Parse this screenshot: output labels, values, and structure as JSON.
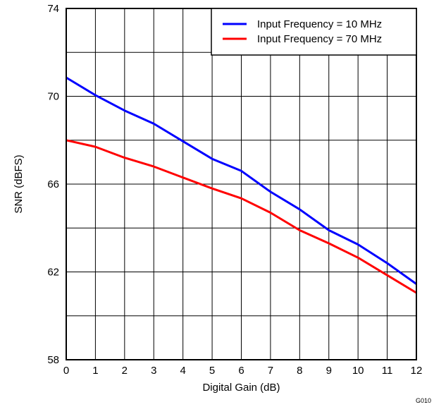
{
  "chart_data": {
    "type": "line",
    "title": "",
    "xlabel": "Digital Gain (dB)",
    "ylabel": "SNR (dBFS)",
    "xlim": [
      0,
      12
    ],
    "ylim": [
      58,
      74
    ],
    "x_ticks": [
      0,
      1,
      2,
      3,
      4,
      5,
      6,
      7,
      8,
      9,
      10,
      11,
      12
    ],
    "y_ticks": [
      58,
      62,
      66,
      70,
      74
    ],
    "y_minor_gridlines": [
      60,
      64,
      68,
      72
    ],
    "grid": true,
    "legend_position": "top-right",
    "x": [
      0,
      1,
      2,
      3,
      4,
      5,
      6,
      7,
      8,
      9,
      10,
      11,
      12
    ],
    "series": [
      {
        "name": "Input Frequency = 10 MHz",
        "color": "#0000ff",
        "values": [
          70.85,
          70.05,
          69.35,
          68.75,
          67.95,
          67.15,
          66.6,
          65.65,
          64.85,
          63.9,
          63.25,
          62.4,
          61.45
        ]
      },
      {
        "name": "Input Frequency = 70 MHz",
        "color": "#ff0000",
        "values": [
          68.0,
          67.7,
          67.2,
          66.8,
          66.3,
          65.8,
          65.35,
          64.7,
          63.9,
          63.3,
          62.65,
          61.85,
          61.05
        ]
      }
    ],
    "footnote": "G010"
  }
}
